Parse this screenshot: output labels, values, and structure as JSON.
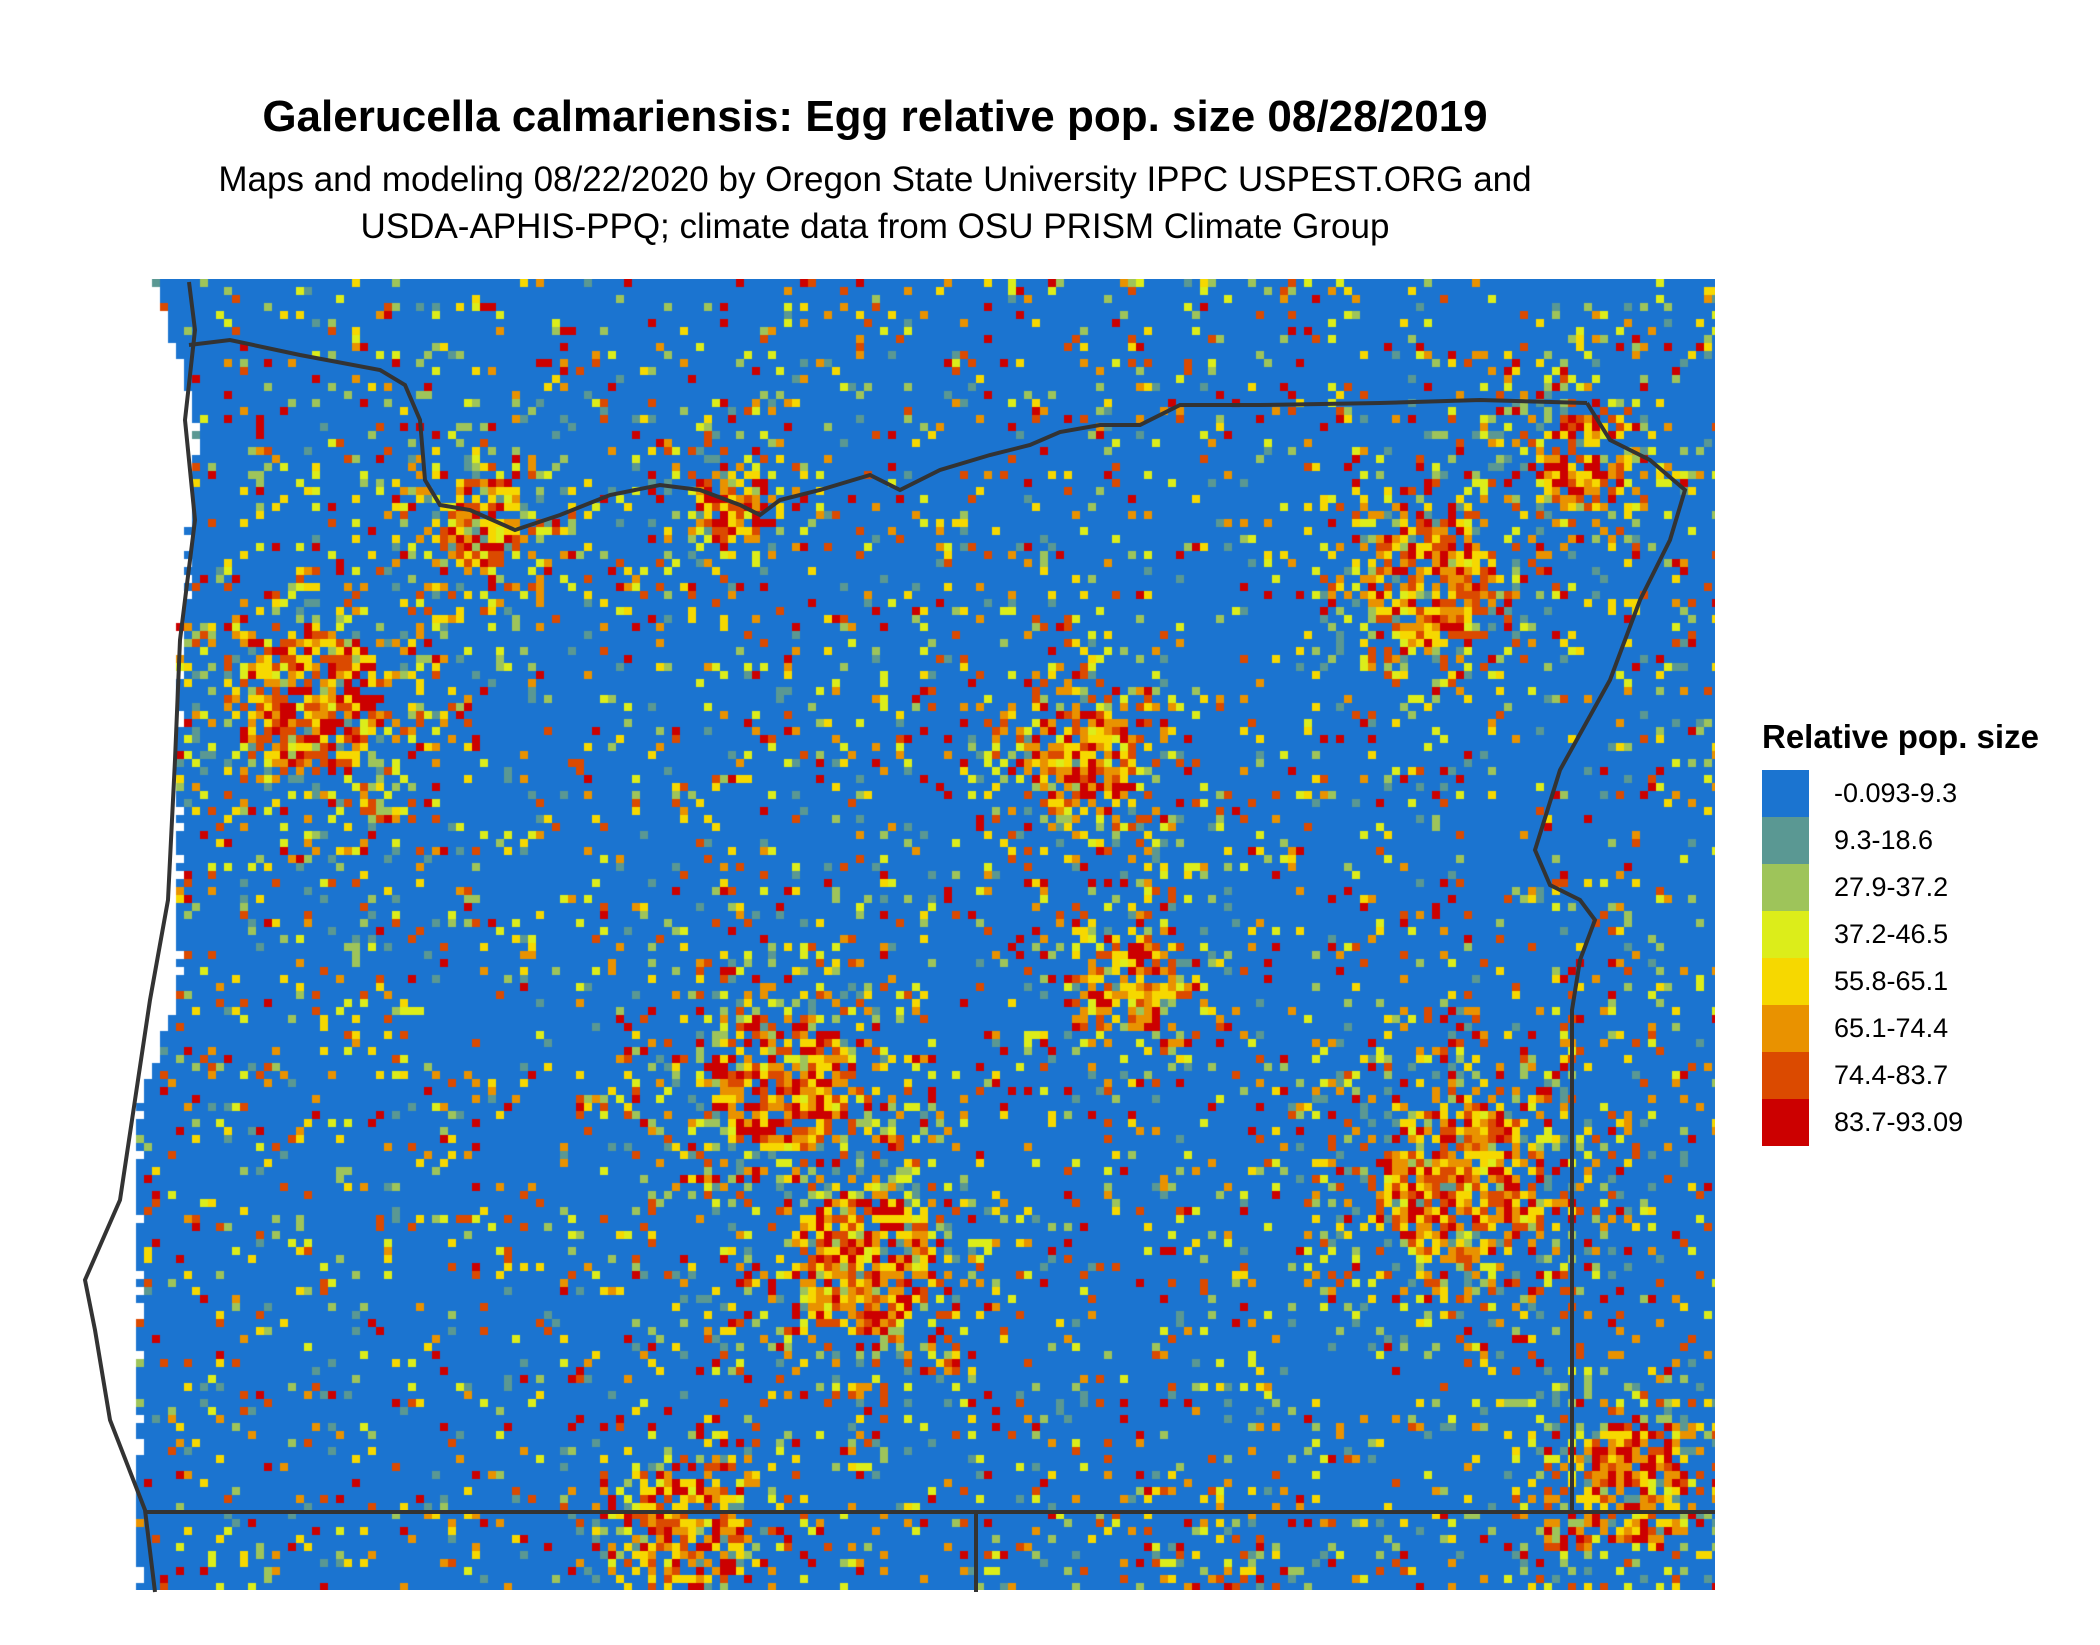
{
  "title": "Galerucella calmariensis: Egg relative pop. size 08/28/2019",
  "subtitle_line1": "Maps and modeling 08/22/2020 by Oregon State University IPPC USPEST.ORG and",
  "subtitle_line2": "USDA-APHIS-PPQ; climate data from OSU PRISM Climate Group",
  "legend": {
    "title": "Relative pop. size",
    "items": [
      {
        "label": "-0.093-9.3",
        "color": "#1b74d0"
      },
      {
        "label": "9.3-18.6",
        "color": "#5a9893"
      },
      {
        "label": "27.9-37.2",
        "color": "#9ec45a"
      },
      {
        "label": "37.2-46.5",
        "color": "#dced1a"
      },
      {
        "label": "55.8-65.1",
        "color": "#f6d800"
      },
      {
        "label": "65.1-74.4",
        "color": "#e99200"
      },
      {
        "label": "74.4-83.7",
        "color": "#db4a00"
      },
      {
        "label": "83.7-93.09",
        "color": "#cc0000"
      }
    ]
  },
  "map": {
    "region": "Oregon",
    "border_color": "#333333"
  }
}
